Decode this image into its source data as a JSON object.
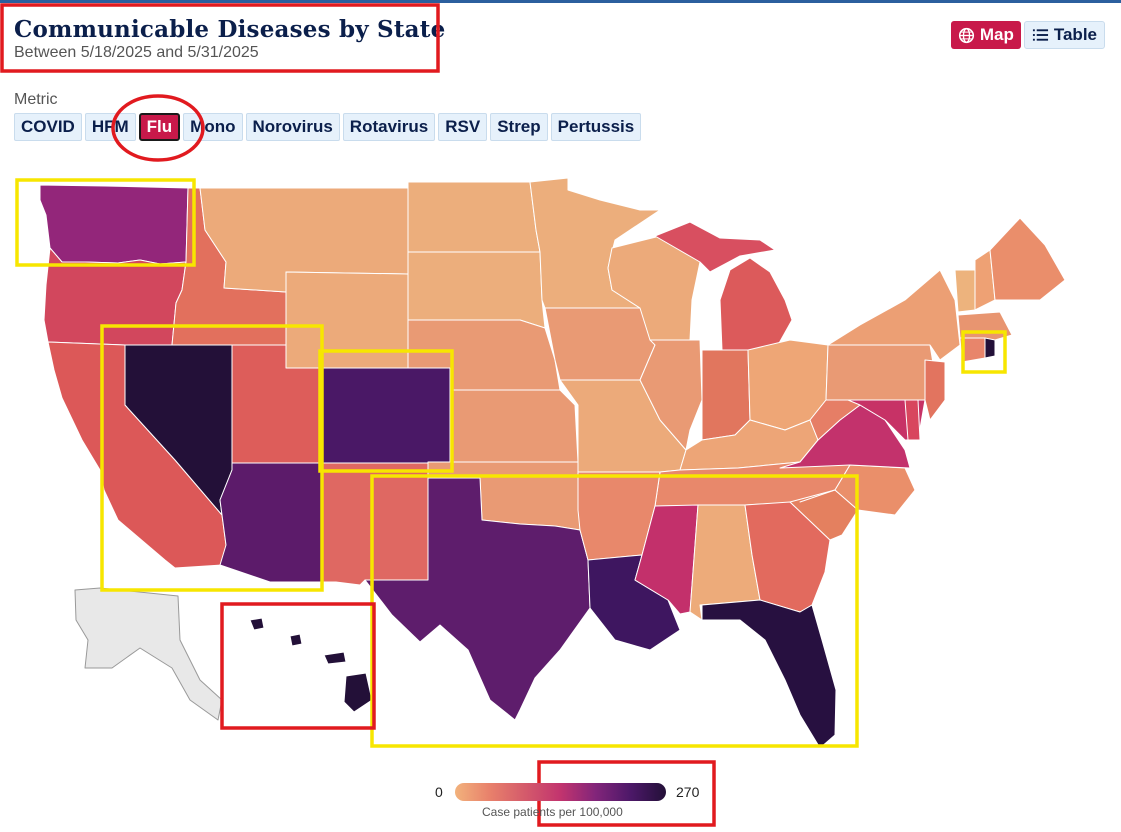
{
  "header": {
    "title": "Communicable Diseases by State",
    "subtitle": "Between 5/18/2025 and 5/31/2025"
  },
  "view_toggle": {
    "map_label": "Map",
    "table_label": "Table",
    "map_icon": "globe-icon",
    "table_icon": "list-icon",
    "active": "Map"
  },
  "metric": {
    "label": "Metric",
    "options": [
      "COVID",
      "HFM",
      "Flu",
      "Mono",
      "Norovirus",
      "Rotavirus",
      "RSV",
      "Strep",
      "Pertussis"
    ],
    "selected": "Flu"
  },
  "legend": {
    "min": "0",
    "max": "270",
    "label": "Case patients per 100,000"
  },
  "colors": {
    "accent": "#c8194a",
    "low": "#f2b27c",
    "high": "#231038",
    "no_data": "#e8e8e8",
    "highlight_yellow": "#f7e600",
    "highlight_red": "#e11a1f"
  }
}
